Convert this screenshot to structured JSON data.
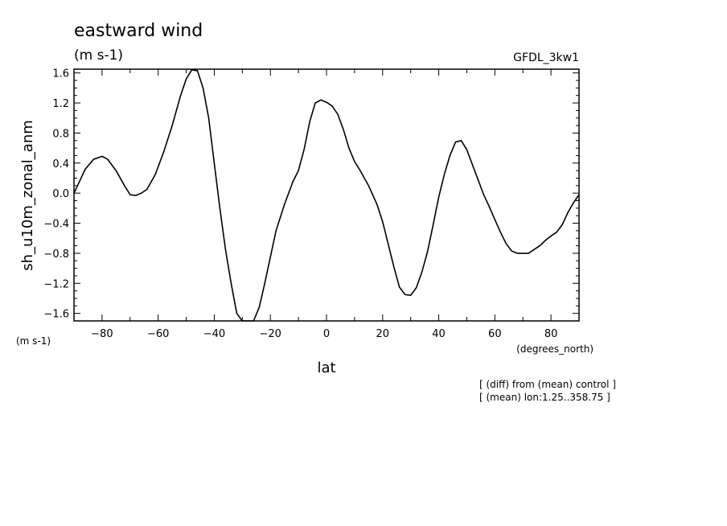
{
  "chart_data": {
    "type": "line",
    "title": "eastward wind",
    "subtitle": "(m s-1)",
    "model_label": "GFDL_3kw1",
    "xlabel": "lat",
    "x_units": "(degrees_north)",
    "ylabel": "sh_u10m_zonal_anm",
    "y_units": "(m s-1)",
    "xlim": [
      -90,
      90
    ],
    "ylim": [
      -1.7,
      1.65
    ],
    "x_ticks": [
      -80,
      -60,
      -40,
      -20,
      0,
      20,
      40,
      60,
      80
    ],
    "x_tick_labels": [
      "−80",
      "−60",
      "−40",
      "−20",
      "0",
      "20",
      "40",
      "60",
      "80"
    ],
    "y_ticks": [
      1.6,
      1.2,
      0.8,
      0.4,
      0.0,
      -0.4,
      -0.8,
      -1.2,
      -1.6
    ],
    "y_tick_labels": [
      "1.6",
      "1.2",
      "0.8",
      "0.4",
      "0.0",
      "−0.4",
      "−0.8",
      "−1.2",
      "−1.6"
    ],
    "grid": false,
    "notes": [
      "[ (diff) from (mean) control ]",
      "[ (mean) lon:1.25..358.75 ]"
    ],
    "series": [
      {
        "x": [
          -90,
          -86,
          -83,
          -80,
          -78,
          -75,
          -72,
          -70,
          -68,
          -66,
          -64,
          -61,
          -58,
          -55,
          -52,
          -50,
          -48,
          -46,
          -44,
          -42,
          -40,
          -38,
          -36,
          -34,
          -32,
          -30,
          -28,
          -26,
          -24,
          -22,
          -20,
          -18,
          -15,
          -12,
          -10,
          -8,
          -6,
          -4,
          -2,
          0,
          2,
          4,
          6,
          8,
          10,
          12,
          15,
          18,
          20,
          22,
          24,
          26,
          28,
          30,
          32,
          34,
          36,
          38,
          40,
          42,
          44,
          46,
          48,
          50,
          52,
          54,
          56,
          58,
          60,
          62,
          64,
          66,
          68,
          70,
          72,
          74,
          76,
          78,
          80,
          82,
          84,
          86,
          88,
          90
        ],
        "y": [
          0.0,
          0.32,
          0.45,
          0.49,
          0.45,
          0.3,
          0.1,
          -0.02,
          -0.03,
          0.0,
          0.05,
          0.25,
          0.55,
          0.9,
          1.3,
          1.52,
          1.64,
          1.63,
          1.4,
          1.0,
          0.4,
          -0.2,
          -0.75,
          -1.2,
          -1.6,
          -1.78,
          -1.85,
          -1.7,
          -1.52,
          -1.2,
          -0.85,
          -0.5,
          -0.15,
          0.15,
          0.3,
          0.58,
          0.95,
          1.2,
          1.24,
          1.21,
          1.16,
          1.05,
          0.85,
          0.6,
          0.42,
          0.3,
          0.1,
          -0.15,
          -0.38,
          -0.68,
          -0.98,
          -1.25,
          -1.35,
          -1.36,
          -1.26,
          -1.05,
          -0.78,
          -0.42,
          -0.05,
          0.25,
          0.5,
          0.68,
          0.7,
          0.58,
          0.38,
          0.18,
          -0.02,
          -0.18,
          -0.35,
          -0.52,
          -0.67,
          -0.77,
          -0.8,
          -0.8,
          -0.8,
          -0.75,
          -0.7,
          -0.63,
          -0.57,
          -0.52,
          -0.42,
          -0.26,
          -0.13,
          -0.02
        ]
      }
    ]
  }
}
